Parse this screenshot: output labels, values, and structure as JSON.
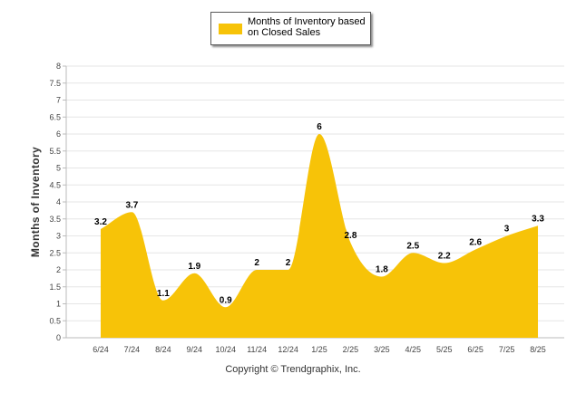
{
  "chart_data": {
    "type": "area",
    "title": "",
    "xlabel": "",
    "ylabel": "Months of Inventory",
    "categories": [
      "6/24",
      "7/24",
      "8/24",
      "9/24",
      "10/24",
      "11/24",
      "12/24",
      "1/25",
      "2/25",
      "3/25",
      "4/25",
      "5/25",
      "6/25",
      "7/25",
      "8/25"
    ],
    "series": [
      {
        "name": "Months of Inventory based on Closed Sales",
        "values": [
          3.2,
          3.7,
          1.1,
          1.9,
          0.9,
          2,
          2,
          6,
          2.8,
          1.8,
          2.5,
          2.2,
          2.6,
          3,
          3.3
        ],
        "color": "#f7c308"
      }
    ],
    "ylim": [
      0,
      8
    ],
    "yticks": [
      "0",
      "0.5",
      "1",
      "1.5",
      "2",
      "2.5",
      "3",
      "3.5",
      "4",
      "4.5",
      "5",
      "5.5",
      "6",
      "6.5",
      "7",
      "7.5",
      "8"
    ],
    "grid": true,
    "legend_position": "top-center"
  },
  "footer": {
    "copyright": "Copyright © Trendgraphix, Inc."
  }
}
